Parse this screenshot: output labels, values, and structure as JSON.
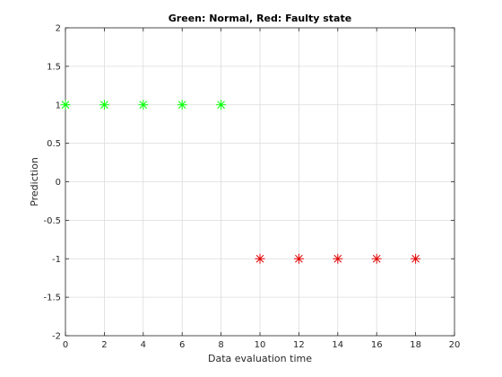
{
  "chart_data": {
    "type": "scatter",
    "title": "Green: Normal, Red: Faulty state",
    "xlabel": "Data evaluation time",
    "ylabel": "Prediction",
    "xlim": [
      0,
      20
    ],
    "ylim": [
      -2,
      2
    ],
    "xticks": [
      0,
      2,
      4,
      6,
      8,
      10,
      12,
      14,
      16,
      18,
      20
    ],
    "yticks": [
      2,
      1.5,
      1,
      0.5,
      0,
      -0.5,
      -1,
      -1.5,
      -2
    ],
    "xtick_labels": [
      "0",
      "2",
      "4",
      "6",
      "8",
      "10",
      "12",
      "14",
      "16",
      "18",
      "20"
    ],
    "ytick_labels": [
      "2",
      "1.5",
      "1",
      "0.5",
      "0",
      "-0.5",
      "-1",
      "-1.5",
      "-2"
    ],
    "grid": true,
    "marker": "asterisk",
    "series": [
      {
        "color": "#00ff00",
        "x": [
          0,
          2,
          4,
          6,
          8
        ],
        "y": [
          1,
          1,
          1,
          1,
          1
        ]
      },
      {
        "color": "#e00000",
        "x": [
          10,
          12,
          14,
          16,
          18
        ],
        "y": [
          -1,
          -1,
          -1,
          -1,
          -1
        ]
      }
    ]
  }
}
